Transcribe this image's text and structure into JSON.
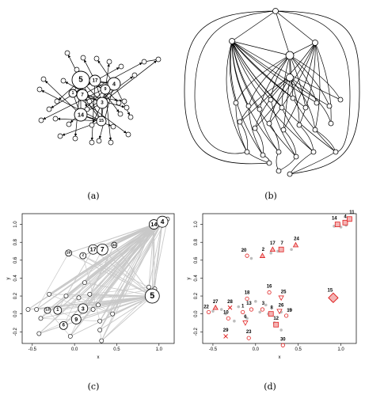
{
  "captions": {
    "a": "(a)",
    "b": "(b)",
    "c": "(c)",
    "d": "(d)"
  },
  "graph_a": {
    "labels": [
      "5",
      "17",
      "4",
      "9",
      "1",
      "7",
      "3",
      "14",
      "15"
    ]
  },
  "plot_c": {
    "xlabel": "x",
    "ylabel": "y",
    "xticks": [
      "-0.5",
      "0.0",
      "0.5",
      "1.0"
    ],
    "yticks": [
      "-0.2",
      "0.0",
      "0.2",
      "0.4",
      "0.6",
      "0.8",
      "1.0"
    ],
    "labels": [
      "14",
      "4",
      "17",
      "7",
      "24",
      "20",
      "5",
      "2",
      "3",
      "1",
      "9",
      "6",
      "13"
    ]
  },
  "plot_d": {
    "xlabel": "x",
    "ylabel": "y",
    "xticks": [
      "-0.5",
      "0.0",
      "0.5",
      "1.0"
    ],
    "yticks": [
      "-0.2",
      "0.0",
      "0.2",
      "0.4",
      "0.6",
      "0.8",
      "1.0"
    ],
    "labels": [
      "14",
      "4",
      "11",
      "17",
      "7",
      "24",
      "20",
      "2",
      "15",
      "16",
      "25",
      "18",
      "27",
      "28",
      "22",
      "10",
      "1",
      "13",
      "3",
      "26",
      "8",
      "6",
      "19",
      "12",
      "29",
      "23",
      "30"
    ],
    "accent": "#e02020"
  }
}
